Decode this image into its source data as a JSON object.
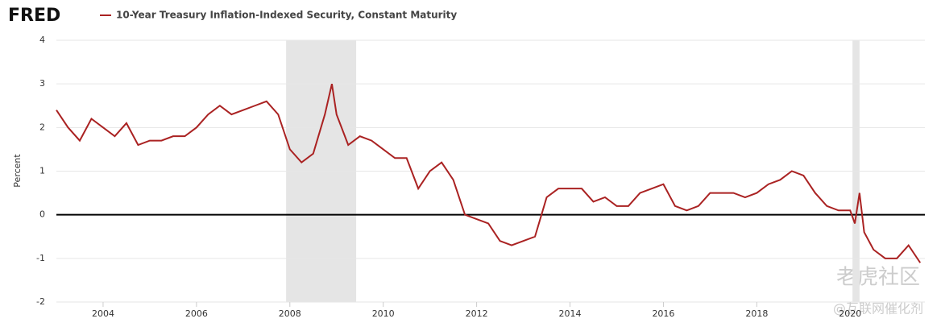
{
  "brand": "FRED",
  "watermark": [
    "老虎社区",
    "@互联网催化剂"
  ],
  "chart_data": {
    "type": "line",
    "title": "10-Year Treasury Inflation-Indexed Security, Constant Maturity",
    "y_label": "Percent",
    "x": [
      2003.0,
      2003.25,
      2003.5,
      2003.75,
      2004.0,
      2004.25,
      2004.5,
      2004.75,
      2005.0,
      2005.25,
      2005.5,
      2005.75,
      2006.0,
      2006.25,
      2006.5,
      2006.75,
      2007.0,
      2007.25,
      2007.5,
      2007.75,
      2008.0,
      2008.25,
      2008.5,
      2008.75,
      2008.9,
      2009.0,
      2009.25,
      2009.5,
      2009.75,
      2010.0,
      2010.25,
      2010.5,
      2010.75,
      2011.0,
      2011.25,
      2011.5,
      2011.75,
      2012.0,
      2012.25,
      2012.5,
      2012.75,
      2013.0,
      2013.25,
      2013.5,
      2013.75,
      2014.0,
      2014.25,
      2014.5,
      2014.75,
      2015.0,
      2015.25,
      2015.5,
      2015.75,
      2016.0,
      2016.25,
      2016.5,
      2016.75,
      2017.0,
      2017.25,
      2017.5,
      2017.75,
      2018.0,
      2018.25,
      2018.5,
      2018.75,
      2019.0,
      2019.25,
      2019.5,
      2019.75,
      2020.0,
      2020.1,
      2020.2,
      2020.3,
      2020.5,
      2020.75,
      2021.0,
      2021.25,
      2021.5
    ],
    "values": [
      2.4,
      2.0,
      1.7,
      2.2,
      2.0,
      1.8,
      2.1,
      1.6,
      1.7,
      1.7,
      1.8,
      1.8,
      2.0,
      2.3,
      2.5,
      2.3,
      2.4,
      2.5,
      2.6,
      2.3,
      1.5,
      1.2,
      1.4,
      2.3,
      3.0,
      2.3,
      1.6,
      1.8,
      1.7,
      1.5,
      1.3,
      1.3,
      0.6,
      1.0,
      1.2,
      0.8,
      0.0,
      -0.1,
      -0.2,
      -0.6,
      -0.7,
      -0.6,
      -0.5,
      0.4,
      0.6,
      0.6,
      0.6,
      0.3,
      0.4,
      0.2,
      0.2,
      0.5,
      0.6,
      0.7,
      0.2,
      0.1,
      0.2,
      0.5,
      0.5,
      0.5,
      0.4,
      0.5,
      0.7,
      0.8,
      1.0,
      0.9,
      0.5,
      0.2,
      0.1,
      0.1,
      -0.2,
      0.5,
      -0.4,
      -0.8,
      -1.0,
      -1.0,
      -0.7,
      -1.1
    ],
    "color": "#aa2222",
    "recessions": [
      [
        2007.92,
        2009.42
      ],
      [
        2020.05,
        2020.2
      ]
    ],
    "xlim": [
      2003.0,
      2021.6
    ],
    "xticks": [
      2004,
      2006,
      2008,
      2010,
      2012,
      2014,
      2016,
      2018,
      2020
    ],
    "ylim": [
      -2,
      4
    ],
    "yticks": [
      -2,
      -1,
      0,
      1,
      2,
      3,
      4
    ],
    "grid": true
  }
}
